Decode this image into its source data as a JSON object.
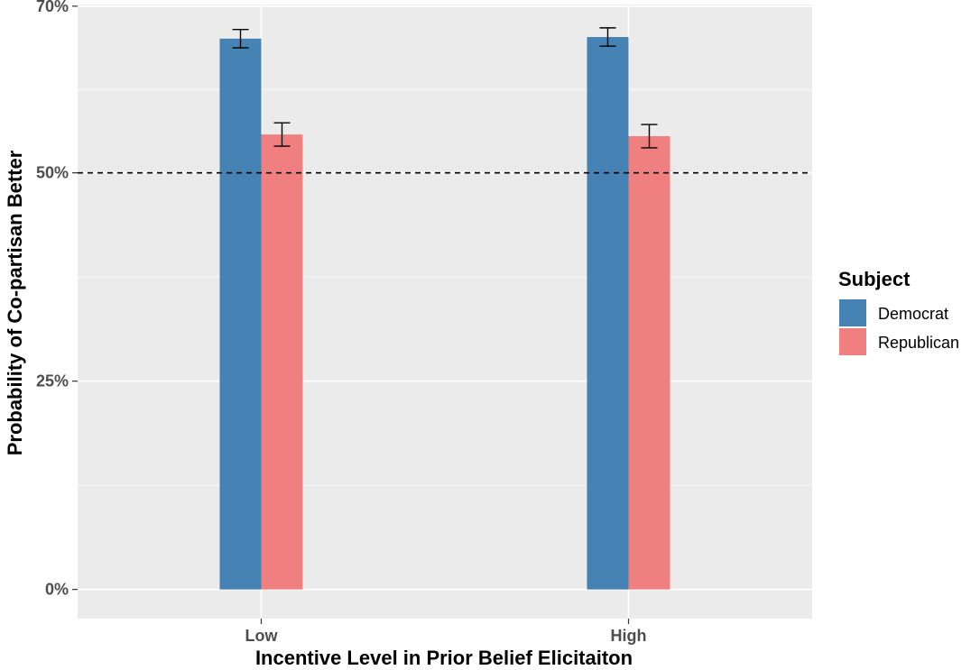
{
  "chart_data": {
    "type": "bar",
    "xlabel": "Incentive Level in Prior Belief Elicitaiton",
    "ylabel": "Probability of Co-partisan Better",
    "categories": [
      "Low",
      "High"
    ],
    "ylim": [
      -0.035,
      0.702
    ],
    "yticks": [
      {
        "value": 0.0,
        "label": "0%"
      },
      {
        "value": 0.25,
        "label": "25%"
      },
      {
        "value": 0.5,
        "label": "50%"
      },
      {
        "value": 0.7,
        "label": "70%"
      }
    ],
    "y_minor_ticks": [
      0.125,
      0.375,
      0.6
    ],
    "reference_line": {
      "value": 0.5,
      "style": "dashed"
    },
    "grid": true,
    "legend": {
      "title": "Subject",
      "position": "right"
    },
    "series": [
      {
        "name": "Democrat",
        "color": "#4682B4",
        "values": [
          0.661,
          0.663
        ],
        "error_low": [
          0.65,
          0.652
        ],
        "error_high": [
          0.672,
          0.674
        ]
      },
      {
        "name": "Republican",
        "color": "#F08080",
        "values": [
          0.546,
          0.544
        ],
        "error_low": [
          0.532,
          0.53
        ],
        "error_high": [
          0.56,
          0.558
        ]
      }
    ],
    "panel_background": "#EBEBEB"
  }
}
